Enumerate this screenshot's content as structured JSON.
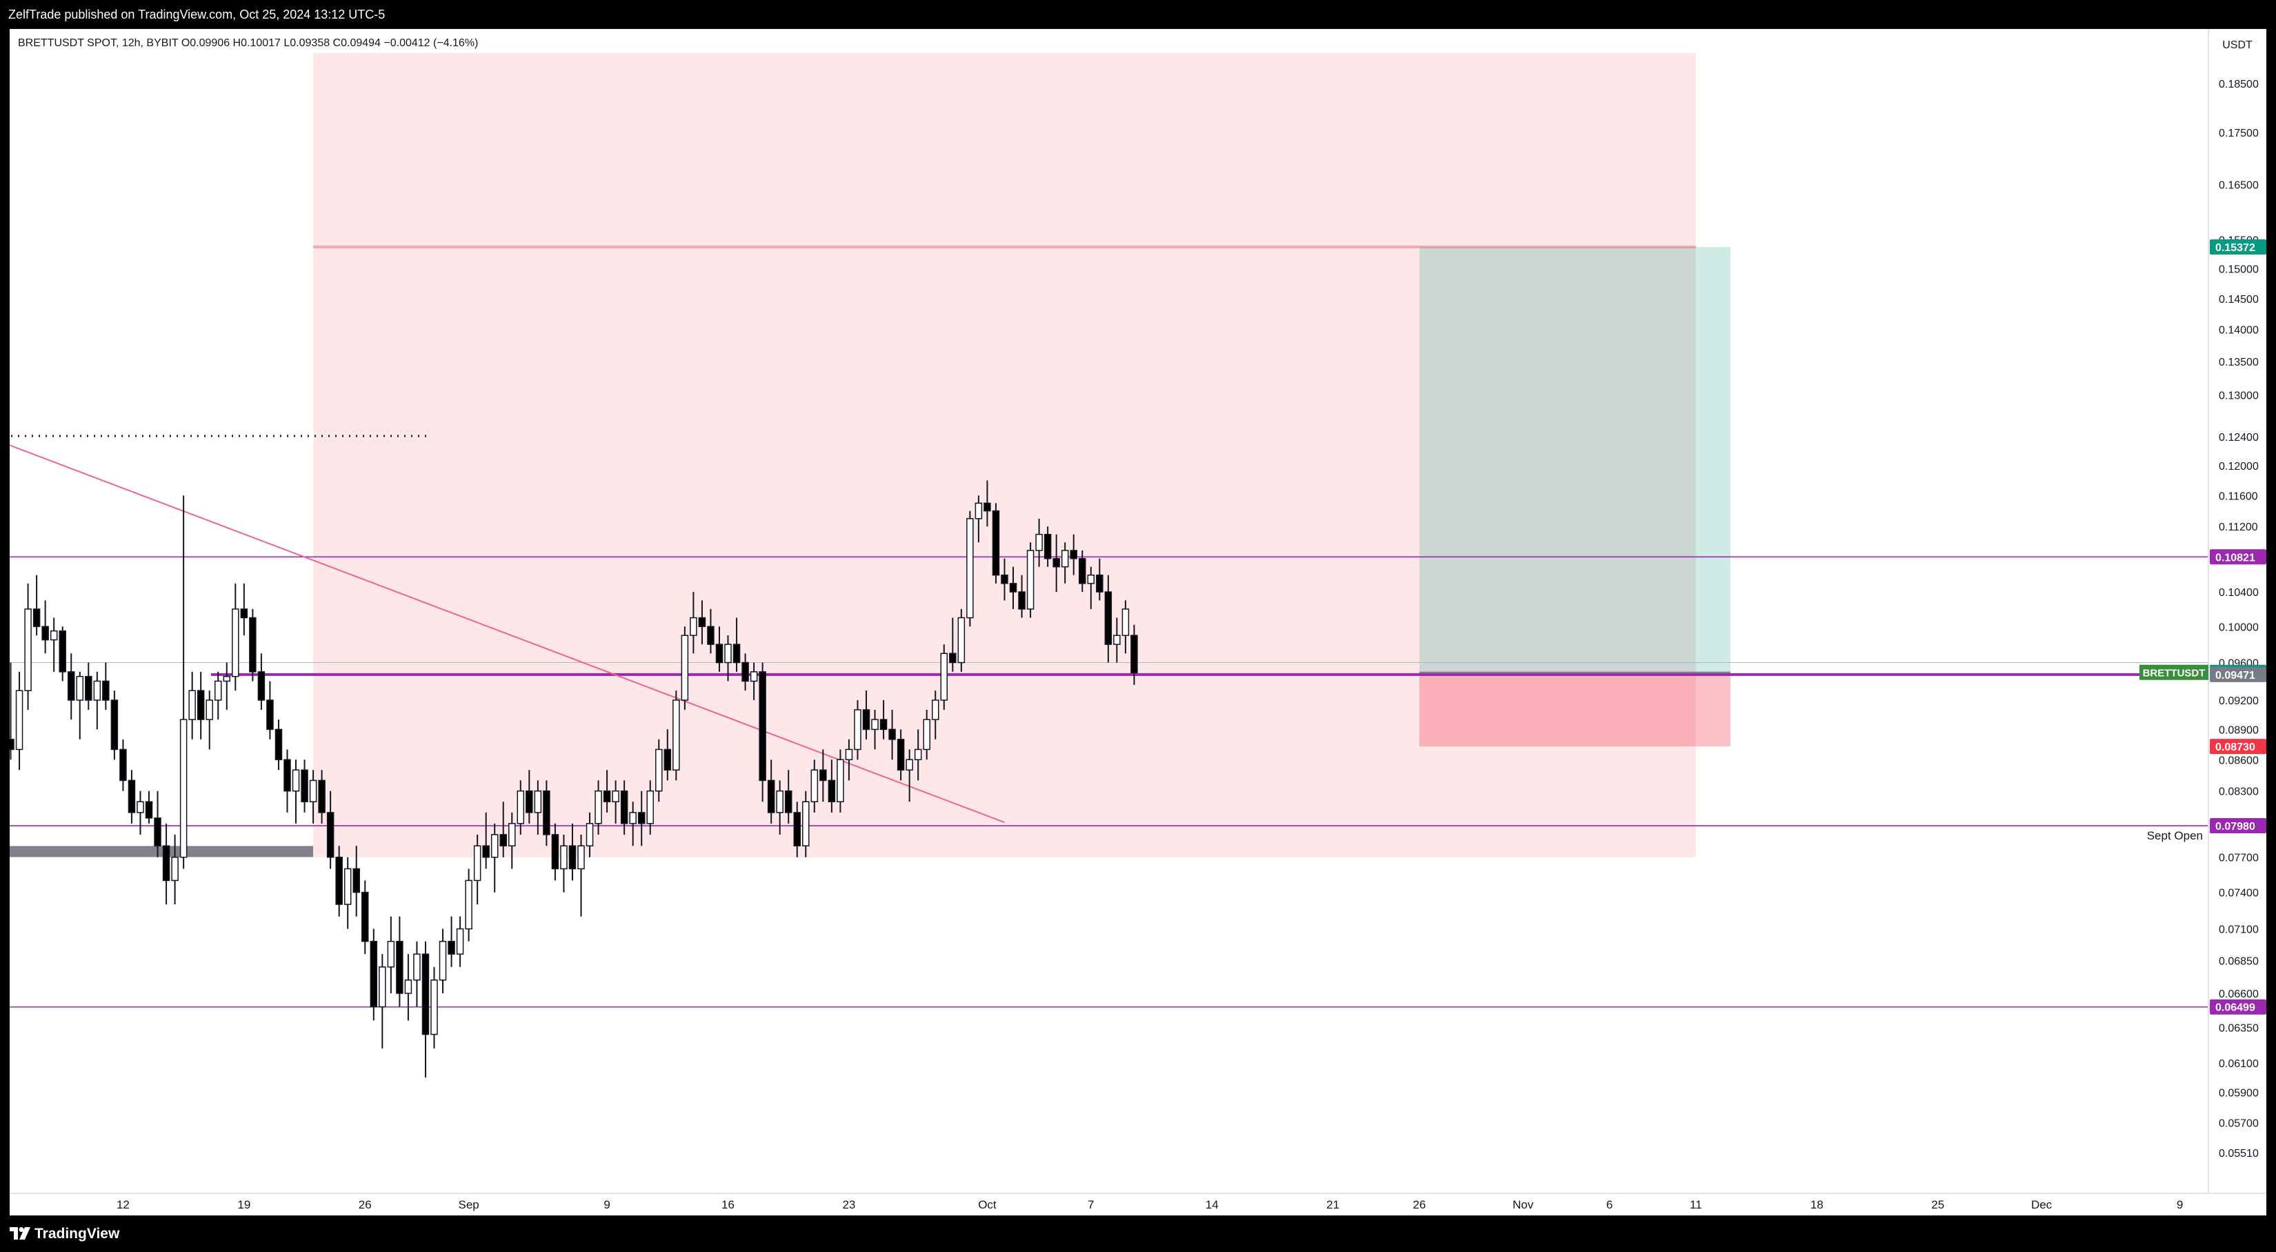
{
  "header": {
    "published": "ZelfTrade published on TradingView.com, Oct 25, 2024 13:12 UTC-5"
  },
  "symbol_info": {
    "text": "BRETTUSDT SPOT, 12h, BYBIT  O0.09906 H0.10017 L0.09358 C0.09494 −0.00412 (−4.16%)"
  },
  "footer": {
    "brand": "TradingView",
    "logo_icon": "tradingview-logo-icon"
  },
  "colors": {
    "up": "#ffffff",
    "down": "#000000",
    "wick": "#131722",
    "level": "#9c27b0",
    "trendline": "#f06292",
    "red_zone": "rgba(242,54,69,0.12)",
    "green_zone": "rgba(8,153,129,0.20)",
    "stop_zone": "rgba(242,54,69,0.30)",
    "tag_purple": "#9c27b0",
    "tag_green": "#089981",
    "tag_red": "#f23645",
    "tag_gray": "#787b86",
    "tag_symbol": "#388e3c"
  },
  "chart_data": {
    "type": "candlestick",
    "symbol": "BRETTUSDT SPOT",
    "interval": "12h",
    "exchange": "BYBIT",
    "currency": "USDT",
    "ohlc": {
      "open": 0.09906,
      "high": 0.10017,
      "low": 0.09358,
      "close": 0.09494,
      "change": -0.00412,
      "change_pct": -4.16
    },
    "yaxis": {
      "unit": "USDT",
      "ticks": [
        "0.18500",
        "0.17500",
        "0.16500",
        "0.15500",
        "0.15000",
        "0.14500",
        "0.14000",
        "0.13500",
        "0.13000",
        "0.12400",
        "0.12000",
        "0.11600",
        "0.11200",
        "0.10800",
        "0.10400",
        "0.10000",
        "0.09600",
        "0.09200",
        "0.08900",
        "0.08600",
        "0.08300",
        "0.08000",
        "0.07700",
        "0.07400",
        "0.07100",
        "0.06850",
        "0.06600",
        "0.06350",
        "0.06100",
        "0.05900",
        "0.05700",
        "0.05510"
      ],
      "scale": "log"
    },
    "xaxis": {
      "ticks": [
        "12",
        "19",
        "26",
        "Sep",
        "9",
        "16",
        "23",
        "Oct",
        "7",
        "14",
        "21",
        "26",
        "Nov",
        "6",
        "11",
        "18",
        "25",
        "Dec",
        "9"
      ]
    },
    "price_tags": [
      {
        "value": "0.15372",
        "color": "tag_green"
      },
      {
        "value": "0.10821",
        "color": "tag_purple"
      },
      {
        "value": "0.09494",
        "color": "tag_green",
        "label": "BRETTUSDT"
      },
      {
        "value": "0.09471",
        "color": "tag_gray"
      },
      {
        "value": "0.08730",
        "color": "tag_red"
      },
      {
        "value": "0.07980",
        "color": "tag_purple"
      },
      {
        "value": "0.06499",
        "color": "tag_purple"
      }
    ],
    "levels": [
      {
        "value": 0.10821,
        "style": "solid"
      },
      {
        "value": 0.09471,
        "style": "solid-thick"
      },
      {
        "value": 0.0798,
        "style": "solid",
        "label": "Sept Open"
      },
      {
        "value": 0.06499,
        "style": "solid"
      }
    ],
    "position": {
      "type": "long",
      "entry": 0.09494,
      "target": 0.15372,
      "stop": 0.0873,
      "start": "Oct 26",
      "end": "Nov 13"
    },
    "red_zone": {
      "start": "Aug 23",
      "end": "Nov 11",
      "top": 0.1915,
      "bottom": 0.077,
      "line": 0.15372
    },
    "trendline": {
      "from": {
        "date": "Aug 5",
        "price": 0.1232
      },
      "to": {
        "date": "Oct 2",
        "price": 0.0801
      }
    },
    "support_band": {
      "start": "Aug 5",
      "end": "Aug 23",
      "price": 0.0775
    },
    "candles": [
      {
        "o": 0.088,
        "h": 0.096,
        "l": 0.086,
        "c": 0.087
      },
      {
        "o": 0.087,
        "h": 0.095,
        "l": 0.085,
        "c": 0.093
      },
      {
        "o": 0.093,
        "h": 0.105,
        "l": 0.091,
        "c": 0.102
      },
      {
        "o": 0.102,
        "h": 0.106,
        "l": 0.099,
        "c": 0.1
      },
      {
        "o": 0.1,
        "h": 0.103,
        "l": 0.097,
        "c": 0.0985
      },
      {
        "o": 0.0985,
        "h": 0.101,
        "l": 0.095,
        "c": 0.0995
      },
      {
        "o": 0.0995,
        "h": 0.1,
        "l": 0.094,
        "c": 0.095
      },
      {
        "o": 0.095,
        "h": 0.097,
        "l": 0.09,
        "c": 0.092
      },
      {
        "o": 0.092,
        "h": 0.095,
        "l": 0.088,
        "c": 0.0945
      },
      {
        "o": 0.0945,
        "h": 0.096,
        "l": 0.091,
        "c": 0.092
      },
      {
        "o": 0.092,
        "h": 0.095,
        "l": 0.089,
        "c": 0.094
      },
      {
        "o": 0.094,
        "h": 0.096,
        "l": 0.091,
        "c": 0.092
      },
      {
        "o": 0.092,
        "h": 0.093,
        "l": 0.086,
        "c": 0.087
      },
      {
        "o": 0.087,
        "h": 0.088,
        "l": 0.083,
        "c": 0.084
      },
      {
        "o": 0.084,
        "h": 0.085,
        "l": 0.08,
        "c": 0.081
      },
      {
        "o": 0.081,
        "h": 0.083,
        "l": 0.079,
        "c": 0.082
      },
      {
        "o": 0.082,
        "h": 0.083,
        "l": 0.08,
        "c": 0.0805
      },
      {
        "o": 0.0805,
        "h": 0.083,
        "l": 0.077,
        "c": 0.078
      },
      {
        "o": 0.078,
        "h": 0.08,
        "l": 0.073,
        "c": 0.075
      },
      {
        "o": 0.075,
        "h": 0.079,
        "l": 0.073,
        "c": 0.077
      },
      {
        "o": 0.077,
        "h": 0.116,
        "l": 0.076,
        "c": 0.09
      },
      {
        "o": 0.09,
        "h": 0.095,
        "l": 0.088,
        "c": 0.093
      },
      {
        "o": 0.093,
        "h": 0.095,
        "l": 0.088,
        "c": 0.09
      },
      {
        "o": 0.09,
        "h": 0.093,
        "l": 0.087,
        "c": 0.092
      },
      {
        "o": 0.092,
        "h": 0.095,
        "l": 0.09,
        "c": 0.094
      },
      {
        "o": 0.094,
        "h": 0.096,
        "l": 0.091,
        "c": 0.0945
      },
      {
        "o": 0.0945,
        "h": 0.105,
        "l": 0.093,
        "c": 0.102
      },
      {
        "o": 0.102,
        "h": 0.105,
        "l": 0.099,
        "c": 0.101
      },
      {
        "o": 0.101,
        "h": 0.102,
        "l": 0.094,
        "c": 0.095
      },
      {
        "o": 0.095,
        "h": 0.097,
        "l": 0.091,
        "c": 0.092
      },
      {
        "o": 0.092,
        "h": 0.094,
        "l": 0.088,
        "c": 0.089
      },
      {
        "o": 0.089,
        "h": 0.09,
        "l": 0.085,
        "c": 0.086
      },
      {
        "o": 0.086,
        "h": 0.087,
        "l": 0.081,
        "c": 0.083
      },
      {
        "o": 0.083,
        "h": 0.086,
        "l": 0.08,
        "c": 0.085
      },
      {
        "o": 0.085,
        "h": 0.086,
        "l": 0.081,
        "c": 0.082
      },
      {
        "o": 0.082,
        "h": 0.085,
        "l": 0.08,
        "c": 0.084
      },
      {
        "o": 0.084,
        "h": 0.085,
        "l": 0.08,
        "c": 0.081
      },
      {
        "o": 0.081,
        "h": 0.083,
        "l": 0.076,
        "c": 0.077
      },
      {
        "o": 0.077,
        "h": 0.078,
        "l": 0.072,
        "c": 0.073
      },
      {
        "o": 0.073,
        "h": 0.077,
        "l": 0.071,
        "c": 0.076
      },
      {
        "o": 0.076,
        "h": 0.078,
        "l": 0.072,
        "c": 0.074
      },
      {
        "o": 0.074,
        "h": 0.075,
        "l": 0.069,
        "c": 0.07
      },
      {
        "o": 0.07,
        "h": 0.071,
        "l": 0.064,
        "c": 0.065
      },
      {
        "o": 0.065,
        "h": 0.069,
        "l": 0.062,
        "c": 0.068
      },
      {
        "o": 0.068,
        "h": 0.072,
        "l": 0.066,
        "c": 0.07
      },
      {
        "o": 0.07,
        "h": 0.072,
        "l": 0.065,
        "c": 0.066
      },
      {
        "o": 0.066,
        "h": 0.069,
        "l": 0.064,
        "c": 0.067
      },
      {
        "o": 0.067,
        "h": 0.07,
        "l": 0.065,
        "c": 0.069
      },
      {
        "o": 0.069,
        "h": 0.07,
        "l": 0.06,
        "c": 0.063
      },
      {
        "o": 0.063,
        "h": 0.068,
        "l": 0.062,
        "c": 0.067
      },
      {
        "o": 0.067,
        "h": 0.071,
        "l": 0.066,
        "c": 0.07
      },
      {
        "o": 0.07,
        "h": 0.072,
        "l": 0.068,
        "c": 0.069
      },
      {
        "o": 0.069,
        "h": 0.072,
        "l": 0.068,
        "c": 0.071
      },
      {
        "o": 0.071,
        "h": 0.076,
        "l": 0.07,
        "c": 0.075
      },
      {
        "o": 0.075,
        "h": 0.079,
        "l": 0.073,
        "c": 0.078
      },
      {
        "o": 0.078,
        "h": 0.081,
        "l": 0.076,
        "c": 0.077
      },
      {
        "o": 0.077,
        "h": 0.08,
        "l": 0.074,
        "c": 0.079
      },
      {
        "o": 0.079,
        "h": 0.082,
        "l": 0.077,
        "c": 0.078
      },
      {
        "o": 0.078,
        "h": 0.081,
        "l": 0.076,
        "c": 0.08
      },
      {
        "o": 0.08,
        "h": 0.084,
        "l": 0.079,
        "c": 0.083
      },
      {
        "o": 0.083,
        "h": 0.085,
        "l": 0.08,
        "c": 0.081
      },
      {
        "o": 0.081,
        "h": 0.084,
        "l": 0.079,
        "c": 0.083
      },
      {
        "o": 0.083,
        "h": 0.084,
        "l": 0.078,
        "c": 0.079
      },
      {
        "o": 0.079,
        "h": 0.08,
        "l": 0.075,
        "c": 0.076
      },
      {
        "o": 0.076,
        "h": 0.079,
        "l": 0.074,
        "c": 0.078
      },
      {
        "o": 0.078,
        "h": 0.08,
        "l": 0.075,
        "c": 0.076
      },
      {
        "o": 0.076,
        "h": 0.079,
        "l": 0.072,
        "c": 0.078
      },
      {
        "o": 0.078,
        "h": 0.081,
        "l": 0.077,
        "c": 0.08
      },
      {
        "o": 0.08,
        "h": 0.084,
        "l": 0.079,
        "c": 0.083
      },
      {
        "o": 0.083,
        "h": 0.085,
        "l": 0.081,
        "c": 0.082
      },
      {
        "o": 0.082,
        "h": 0.084,
        "l": 0.08,
        "c": 0.083
      },
      {
        "o": 0.083,
        "h": 0.084,
        "l": 0.079,
        "c": 0.08
      },
      {
        "o": 0.08,
        "h": 0.082,
        "l": 0.078,
        "c": 0.081
      },
      {
        "o": 0.081,
        "h": 0.083,
        "l": 0.078,
        "c": 0.08
      },
      {
        "o": 0.08,
        "h": 0.084,
        "l": 0.079,
        "c": 0.083
      },
      {
        "o": 0.083,
        "h": 0.088,
        "l": 0.082,
        "c": 0.087
      },
      {
        "o": 0.087,
        "h": 0.089,
        "l": 0.084,
        "c": 0.085
      },
      {
        "o": 0.085,
        "h": 0.093,
        "l": 0.084,
        "c": 0.092
      },
      {
        "o": 0.092,
        "h": 0.1,
        "l": 0.091,
        "c": 0.099
      },
      {
        "o": 0.099,
        "h": 0.104,
        "l": 0.097,
        "c": 0.101
      },
      {
        "o": 0.101,
        "h": 0.103,
        "l": 0.098,
        "c": 0.1
      },
      {
        "o": 0.1,
        "h": 0.102,
        "l": 0.097,
        "c": 0.098
      },
      {
        "o": 0.098,
        "h": 0.1,
        "l": 0.095,
        "c": 0.096
      },
      {
        "o": 0.096,
        "h": 0.099,
        "l": 0.094,
        "c": 0.098
      },
      {
        "o": 0.098,
        "h": 0.101,
        "l": 0.095,
        "c": 0.096
      },
      {
        "o": 0.096,
        "h": 0.097,
        "l": 0.093,
        "c": 0.094
      },
      {
        "o": 0.094,
        "h": 0.096,
        "l": 0.092,
        "c": 0.095
      },
      {
        "o": 0.095,
        "h": 0.096,
        "l": 0.082,
        "c": 0.084
      },
      {
        "o": 0.084,
        "h": 0.086,
        "l": 0.08,
        "c": 0.081
      },
      {
        "o": 0.081,
        "h": 0.084,
        "l": 0.079,
        "c": 0.083
      },
      {
        "o": 0.083,
        "h": 0.085,
        "l": 0.08,
        "c": 0.081
      },
      {
        "o": 0.081,
        "h": 0.082,
        "l": 0.077,
        "c": 0.078
      },
      {
        "o": 0.078,
        "h": 0.083,
        "l": 0.077,
        "c": 0.082
      },
      {
        "o": 0.082,
        "h": 0.086,
        "l": 0.081,
        "c": 0.085
      },
      {
        "o": 0.085,
        "h": 0.087,
        "l": 0.082,
        "c": 0.084
      },
      {
        "o": 0.084,
        "h": 0.086,
        "l": 0.081,
        "c": 0.082
      },
      {
        "o": 0.082,
        "h": 0.087,
        "l": 0.081,
        "c": 0.086
      },
      {
        "o": 0.086,
        "h": 0.088,
        "l": 0.084,
        "c": 0.087
      },
      {
        "o": 0.087,
        "h": 0.092,
        "l": 0.086,
        "c": 0.091
      },
      {
        "o": 0.091,
        "h": 0.093,
        "l": 0.088,
        "c": 0.089
      },
      {
        "o": 0.089,
        "h": 0.091,
        "l": 0.087,
        "c": 0.09
      },
      {
        "o": 0.09,
        "h": 0.092,
        "l": 0.088,
        "c": 0.089
      },
      {
        "o": 0.089,
        "h": 0.091,
        "l": 0.086,
        "c": 0.088
      },
      {
        "o": 0.088,
        "h": 0.089,
        "l": 0.084,
        "c": 0.085
      },
      {
        "o": 0.085,
        "h": 0.087,
        "l": 0.082,
        "c": 0.086
      },
      {
        "o": 0.086,
        "h": 0.089,
        "l": 0.084,
        "c": 0.087
      },
      {
        "o": 0.087,
        "h": 0.091,
        "l": 0.086,
        "c": 0.09
      },
      {
        "o": 0.09,
        "h": 0.093,
        "l": 0.088,
        "c": 0.092
      },
      {
        "o": 0.092,
        "h": 0.098,
        "l": 0.091,
        "c": 0.097
      },
      {
        "o": 0.097,
        "h": 0.101,
        "l": 0.095,
        "c": 0.096
      },
      {
        "o": 0.096,
        "h": 0.102,
        "l": 0.095,
        "c": 0.101
      },
      {
        "o": 0.101,
        "h": 0.114,
        "l": 0.1,
        "c": 0.113
      },
      {
        "o": 0.113,
        "h": 0.116,
        "l": 0.11,
        "c": 0.115
      },
      {
        "o": 0.115,
        "h": 0.118,
        "l": 0.112,
        "c": 0.114
      },
      {
        "o": 0.114,
        "h": 0.115,
        "l": 0.105,
        "c": 0.106
      },
      {
        "o": 0.106,
        "h": 0.108,
        "l": 0.103,
        "c": 0.105
      },
      {
        "o": 0.105,
        "h": 0.107,
        "l": 0.102,
        "c": 0.104
      },
      {
        "o": 0.104,
        "h": 0.106,
        "l": 0.101,
        "c": 0.102
      },
      {
        "o": 0.102,
        "h": 0.11,
        "l": 0.101,
        "c": 0.109
      },
      {
        "o": 0.109,
        "h": 0.113,
        "l": 0.107,
        "c": 0.111
      },
      {
        "o": 0.111,
        "h": 0.112,
        "l": 0.107,
        "c": 0.108
      },
      {
        "o": 0.108,
        "h": 0.111,
        "l": 0.104,
        "c": 0.107
      },
      {
        "o": 0.107,
        "h": 0.11,
        "l": 0.105,
        "c": 0.109
      },
      {
        "o": 0.109,
        "h": 0.111,
        "l": 0.106,
        "c": 0.108
      },
      {
        "o": 0.108,
        "h": 0.109,
        "l": 0.104,
        "c": 0.105
      },
      {
        "o": 0.105,
        "h": 0.107,
        "l": 0.102,
        "c": 0.106
      },
      {
        "o": 0.106,
        "h": 0.108,
        "l": 0.103,
        "c": 0.104
      },
      {
        "o": 0.104,
        "h": 0.106,
        "l": 0.096,
        "c": 0.098
      },
      {
        "o": 0.098,
        "h": 0.101,
        "l": 0.096,
        "c": 0.099
      },
      {
        "o": 0.099,
        "h": 0.103,
        "l": 0.097,
        "c": 0.102
      },
      {
        "o": 0.099,
        "h": 0.1002,
        "l": 0.0936,
        "c": 0.0949
      }
    ]
  }
}
